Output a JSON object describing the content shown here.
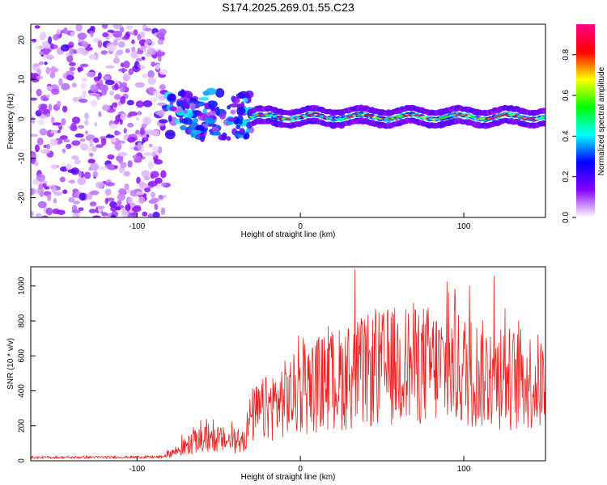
{
  "chart_data": [
    {
      "type": "heatmap",
      "title": "S174.2025.269.01.55.C23",
      "xlabel": "Height of straight line (km)",
      "ylabel": "Frequency (Hz)",
      "xlim": [
        -165,
        150
      ],
      "ylim": [
        -25,
        24
      ],
      "xticks": [
        -100,
        0,
        100
      ],
      "yticks": [
        -20,
        -10,
        0,
        10,
        20
      ],
      "colorbar": {
        "label": "Normalized spectral amplitude",
        "range": [
          0,
          0.95
        ],
        "ticks": [
          0.0,
          0.2,
          0.4,
          0.6,
          0.8
        ],
        "colormap": [
          "#ffffff",
          "#8800ff",
          "#0000ff",
          "#00ffff",
          "#00ff00",
          "#ffff00",
          "#ff0000",
          "#ff0088"
        ]
      },
      "regions": [
        {
          "name": "noise",
          "x_range": [
            -165,
            -82
          ],
          "freq_range": [
            -25,
            24
          ],
          "amplitude": 0.15
        },
        {
          "name": "onset",
          "x_range": [
            -82,
            -30
          ],
          "freq_range": [
            -5,
            7
          ],
          "amplitude": 0.35
        },
        {
          "name": "signal-band",
          "x_range": [
            -30,
            150
          ],
          "center_freq": 0.5,
          "amplitude": 0.75
        }
      ]
    },
    {
      "type": "line",
      "xlabel": "Height of straight line (km)",
      "ylabel": "SNR (10 * v/v)",
      "xlim": [
        -165,
        150
      ],
      "ylim": [
        0,
        1110
      ],
      "xticks": [
        -100,
        0,
        100
      ],
      "yticks": [
        0,
        200,
        400,
        600,
        800,
        1000
      ],
      "series": [
        {
          "name": "SNR",
          "color": "#ee2222",
          "envelope_x": [
            -165,
            -85,
            -75,
            -65,
            -55,
            -45,
            -35,
            -30,
            -20,
            -10,
            0,
            10,
            20,
            30,
            40,
            50,
            60,
            70,
            80,
            90,
            100,
            110,
            120,
            130,
            140,
            150
          ],
          "envelope_y": [
            22,
            25,
            60,
            110,
            130,
            120,
            110,
            260,
            310,
            360,
            400,
            450,
            470,
            500,
            520,
            540,
            560,
            570,
            560,
            540,
            530,
            510,
            500,
            480,
            470,
            450
          ]
        }
      ]
    }
  ]
}
